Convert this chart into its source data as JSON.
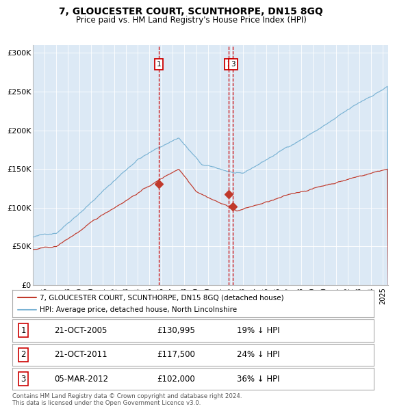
{
  "title": "7, GLOUCESTER COURT, SCUNTHORPE, DN15 8GQ",
  "subtitle": "Price paid vs. HM Land Registry's House Price Index (HPI)",
  "background_color": "#dce9f5",
  "plot_bg_color": "#dce9f5",
  "ylim": [
    0,
    310000
  ],
  "yticks": [
    0,
    50000,
    100000,
    150000,
    200000,
    250000,
    300000
  ],
  "ytick_labels": [
    "£0",
    "£50K",
    "£100K",
    "£150K",
    "£200K",
    "£250K",
    "£300K"
  ],
  "hpi_color": "#7ab3d4",
  "price_color": "#c0392b",
  "marker_color": "#c0392b",
  "vline_color": "#cc0000",
  "transaction1_date_num": 2005.81,
  "transaction1_price": 130995,
  "transaction2_date_num": 2011.81,
  "transaction2_price": 117500,
  "transaction3_date_num": 2012.17,
  "transaction3_price": 102000,
  "legend_price_label": "7, GLOUCESTER COURT, SCUNTHORPE, DN15 8GQ (detached house)",
  "legend_hpi_label": "HPI: Average price, detached house, North Lincolnshire",
  "table_rows": [
    [
      "1",
      "21-OCT-2005",
      "£130,995",
      "19% ↓ HPI"
    ],
    [
      "2",
      "21-OCT-2011",
      "£117,500",
      "24% ↓ HPI"
    ],
    [
      "3",
      "05-MAR-2012",
      "£102,000",
      "36% ↓ HPI"
    ]
  ],
  "footer": "Contains HM Land Registry data © Crown copyright and database right 2024.\nThis data is licensed under the Open Government Licence v3.0.",
  "xmin": 1995.0,
  "xmax": 2025.5
}
